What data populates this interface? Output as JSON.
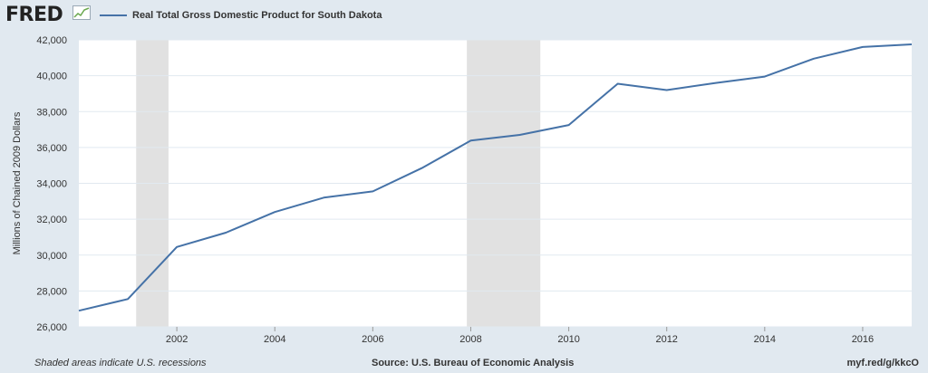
{
  "brand": {
    "name": "FRED",
    "icon": "chart-line-icon"
  },
  "chart_data": {
    "type": "line",
    "title": "Real Total Gross Domestic Product for South Dakota",
    "ylabel": "Millions of Chained 2009 Dollars",
    "xlabel": "",
    "xlim": [
      2000,
      2017
    ],
    "ylim": [
      26000,
      42000
    ],
    "x_ticks": [
      2002,
      2004,
      2006,
      2008,
      2010,
      2012,
      2014,
      2016
    ],
    "y_ticks": [
      26000,
      28000,
      30000,
      32000,
      34000,
      36000,
      38000,
      40000,
      42000
    ],
    "x_tick_labels": [
      "2002",
      "2004",
      "2006",
      "2008",
      "2010",
      "2012",
      "2014",
      "2016"
    ],
    "y_tick_labels": [
      "26,000",
      "28,000",
      "30,000",
      "32,000",
      "34,000",
      "36,000",
      "38,000",
      "40,000",
      "42,000"
    ],
    "grid": "horizontal",
    "series": [
      {
        "name": "Real Total Gross Domestic Product for South Dakota",
        "color": "#4572a7",
        "x": [
          2000,
          2001,
          2002,
          2003,
          2004,
          2005,
          2006,
          2007,
          2008,
          2009,
          2010,
          2011,
          2012,
          2013,
          2014,
          2015,
          2016,
          2017
        ],
        "values": [
          26900,
          27550,
          30450,
          31250,
          32400,
          33200,
          33550,
          34850,
          36380,
          36700,
          37250,
          39550,
          39200,
          39600,
          39950,
          40950,
          41600,
          41750
        ]
      }
    ],
    "recessions": [
      {
        "start": 2001.17,
        "end": 2001.83
      },
      {
        "start": 2007.92,
        "end": 2009.42
      }
    ]
  },
  "footer": {
    "note": "Shaded areas indicate U.S. recessions",
    "source": "Source: U.S. Bureau of Economic Analysis",
    "link": "myf.red/g/kkcO"
  },
  "colors": {
    "background": "#e1e9f0",
    "plot": "#ffffff",
    "recession": "#e1e1e1",
    "grid": "#e1e9f0",
    "line": "#4572a7"
  }
}
